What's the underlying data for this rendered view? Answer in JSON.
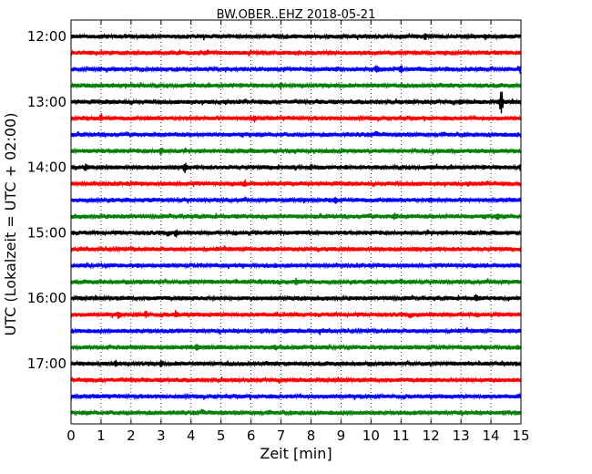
{
  "chart_data": {
    "type": "line",
    "title": "BW.OBER..EHZ 2018-05-21",
    "xlabel": "Zeit  [min]",
    "ylabel": "UTC (Lokalzeit = UTC + 02:00)",
    "xlim": [
      0,
      15
    ],
    "x_ticks": [
      "0",
      "1",
      "2",
      "3",
      "4",
      "5",
      "6",
      "7",
      "8",
      "9",
      "10",
      "11",
      "12",
      "13",
      "14",
      "15"
    ],
    "vertical_grid": "dotted",
    "y_tick_labels": [
      "12:00",
      "13:00",
      "14:00",
      "15:00",
      "16:00",
      "17:00"
    ],
    "series": [
      {
        "start": "12:00",
        "color": "#000000",
        "events": [
          [
            11.8,
            0.4
          ],
          [
            13.8,
            0.4
          ]
        ]
      },
      {
        "start": "12:15",
        "color": "#ff0000",
        "events": []
      },
      {
        "start": "12:30",
        "color": "#0000ff",
        "events": [
          [
            10.2,
            0.5
          ],
          [
            11.0,
            0.4
          ],
          [
            15.0,
            0.5
          ]
        ]
      },
      {
        "start": "12:45",
        "color": "#008000",
        "events": [
          [
            7.0,
            0.3
          ]
        ]
      },
      {
        "start": "13:00",
        "color": "#000000",
        "events": [
          [
            14.35,
            2.6
          ],
          [
            13.0,
            0.3
          ]
        ]
      },
      {
        "start": "13:15",
        "color": "#ff0000",
        "events": [
          [
            1.0,
            0.5
          ],
          [
            6.1,
            0.4
          ]
        ]
      },
      {
        "start": "13:30",
        "color": "#0000ff",
        "events": []
      },
      {
        "start": "13:45",
        "color": "#008000",
        "events": [
          [
            3.0,
            0.4
          ],
          [
            8.5,
            0.3
          ]
        ]
      },
      {
        "start": "14:00",
        "color": "#000000",
        "events": [
          [
            0.5,
            0.4
          ],
          [
            3.8,
            0.6
          ],
          [
            8.0,
            0.4
          ],
          [
            15.0,
            0.5
          ]
        ]
      },
      {
        "start": "14:15",
        "color": "#ff0000",
        "events": [
          [
            5.8,
            0.3
          ]
        ]
      },
      {
        "start": "14:30",
        "color": "#0000ff",
        "events": [
          [
            8.8,
            0.4
          ],
          [
            12.0,
            0.3
          ]
        ]
      },
      {
        "start": "14:45",
        "color": "#008000",
        "events": [
          [
            10.8,
            0.4
          ],
          [
            14.2,
            0.4
          ]
        ]
      },
      {
        "start": "15:00",
        "color": "#000000",
        "events": [
          [
            3.5,
            0.4
          ]
        ]
      },
      {
        "start": "15:15",
        "color": "#ff0000",
        "events": []
      },
      {
        "start": "15:30",
        "color": "#0000ff",
        "events": []
      },
      {
        "start": "15:45",
        "color": "#008000",
        "events": [
          [
            7.5,
            0.3
          ],
          [
            11.0,
            0.3
          ]
        ]
      },
      {
        "start": "16:00",
        "color": "#000000",
        "events": [
          [
            13.5,
            0.4
          ]
        ]
      },
      {
        "start": "16:15",
        "color": "#ff0000",
        "events": [
          [
            1.6,
            0.5
          ],
          [
            2.5,
            0.4
          ],
          [
            3.5,
            0.4
          ]
        ]
      },
      {
        "start": "16:30",
        "color": "#0000ff",
        "events": [
          [
            8.3,
            0.3
          ]
        ]
      },
      {
        "start": "16:45",
        "color": "#008000",
        "events": [
          [
            4.2,
            0.4
          ],
          [
            6.8,
            0.3
          ]
        ]
      },
      {
        "start": "17:00",
        "color": "#000000",
        "events": [
          [
            1.5,
            0.6
          ],
          [
            3.0,
            0.3
          ]
        ]
      },
      {
        "start": "17:15",
        "color": "#ff0000",
        "events": []
      },
      {
        "start": "17:30",
        "color": "#0000ff",
        "events": []
      },
      {
        "start": "17:45",
        "color": "#008000",
        "events": []
      }
    ]
  }
}
